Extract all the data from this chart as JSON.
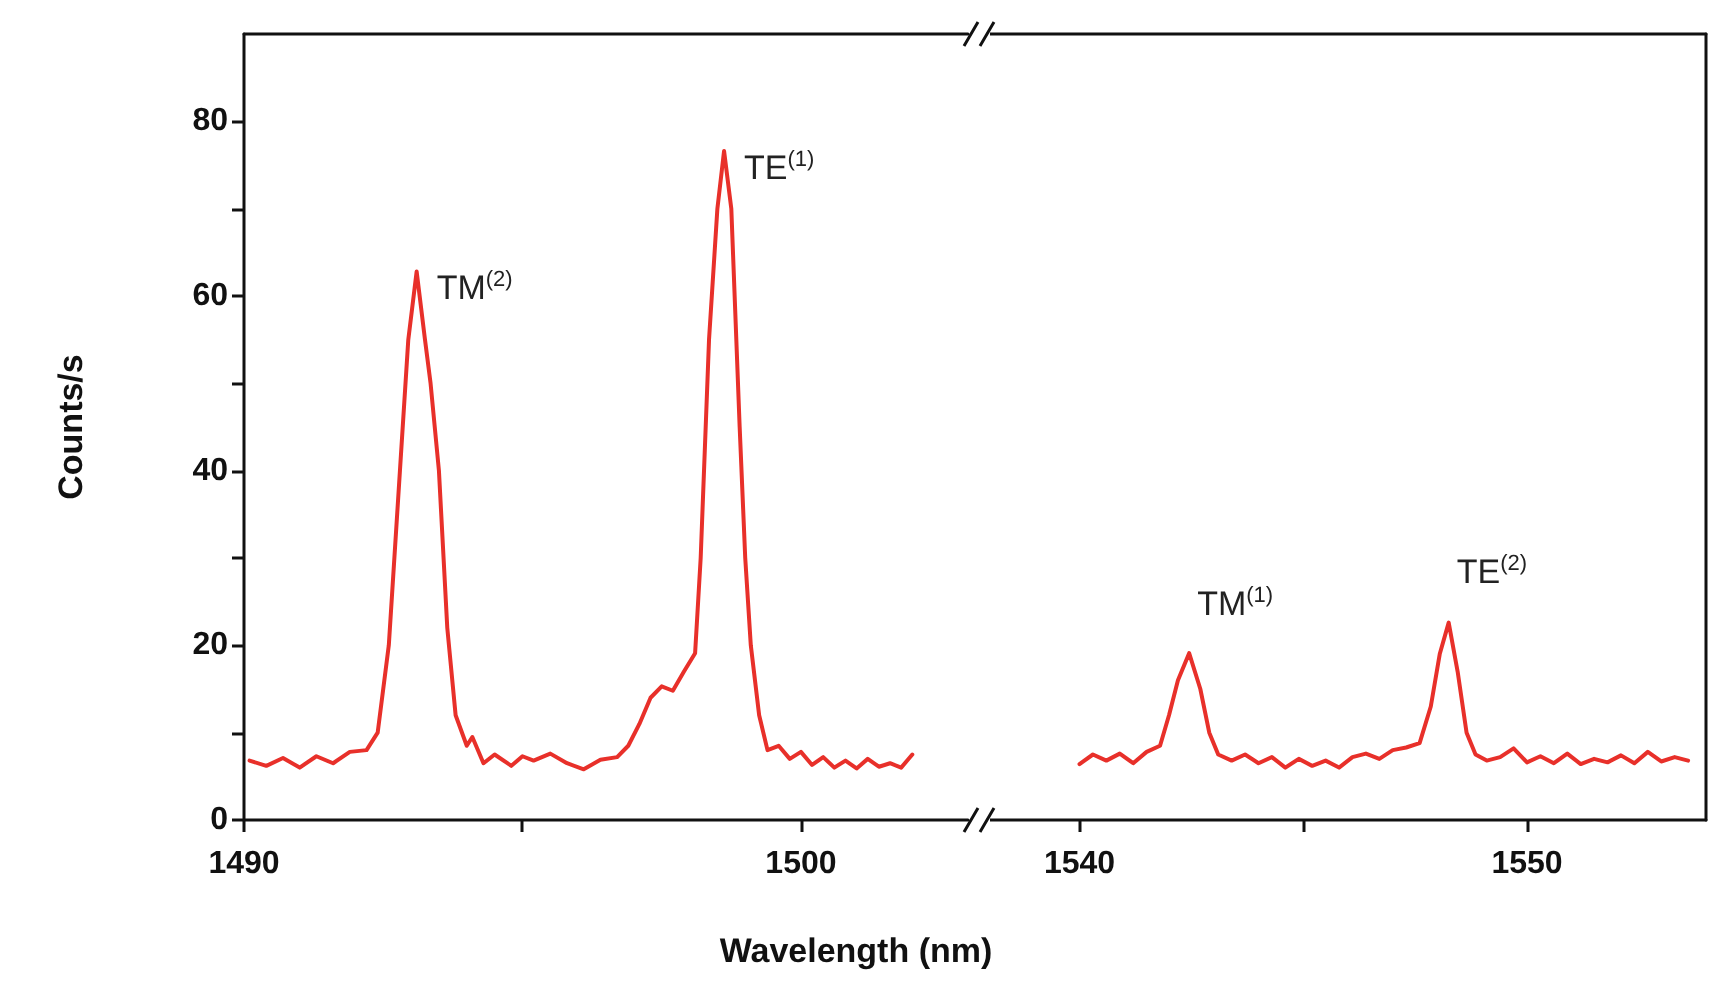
{
  "chart_data": [
    {
      "type": "line",
      "xlabel": "Wavelength (nm)",
      "ylabel": "Counts/s",
      "marker": "none",
      "line_style": "solid",
      "xlim": [
        1490,
        1503
      ],
      "xticks": [
        1490,
        {
          "value": 1495,
          "label": null
        },
        1500
      ],
      "ylim": [
        0,
        90
      ],
      "yticks": [
        0,
        {
          "value": 10,
          "label": null
        },
        20,
        {
          "value": 30,
          "label": null
        },
        40,
        {
          "value": 50,
          "label": null
        },
        60,
        {
          "value": 70,
          "label": null
        },
        80
      ],
      "annotations": [
        {
          "text": "TM$^{(2)}$",
          "x": 1493.1,
          "y": 62.8
        },
        {
          "text": "TE$^{(1)}$",
          "x": 1498.62,
          "y": 76.6
        }
      ],
      "series": [
        {
          "color": "#e8302a",
          "x": [
            1490.1,
            1490.4,
            1490.7,
            1491.0,
            1491.3,
            1491.6,
            1491.9,
            1492.2,
            1492.4,
            1492.6,
            1492.8,
            1492.95,
            1493.1,
            1493.25,
            1493.35,
            1493.5,
            1493.65,
            1493.8,
            1494.0,
            1494.1,
            1494.3,
            1494.5,
            1494.8,
            1495.0,
            1495.2,
            1495.5,
            1495.8,
            1496.1,
            1496.4,
            1496.7,
            1496.9,
            1497.1,
            1497.3,
            1497.5,
            1497.7,
            1497.9,
            1498.1,
            1498.2,
            1498.35,
            1498.5,
            1498.62,
            1498.75,
            1498.9,
            1499.0,
            1499.1,
            1499.25,
            1499.4,
            1499.6,
            1499.8,
            1500.0,
            1500.2,
            1500.4,
            1500.6,
            1500.8,
            1501.0,
            1501.2,
            1501.4,
            1501.6,
            1501.8,
            1502.0
          ],
          "values": [
            6.8,
            6.2,
            7.1,
            6.0,
            7.3,
            6.5,
            7.8,
            8.0,
            10,
            20,
            40,
            55,
            62.8,
            55,
            50,
            40,
            22,
            12,
            8.5,
            9.5,
            6.5,
            7.5,
            6.2,
            7.3,
            6.8,
            7.6,
            6.5,
            5.8,
            6.9,
            7.2,
            8.5,
            11,
            14,
            15.3,
            14.8,
            17,
            19.1,
            30,
            55,
            70,
            76.6,
            70,
            45,
            30,
            20,
            12,
            8,
            8.5,
            7.0,
            7.8,
            6.3,
            7.2,
            6.0,
            6.8,
            5.9,
            7.0,
            6.1,
            6.5,
            6.0,
            7.5
          ]
        }
      ]
    },
    {
      "type": "line",
      "marker": "none",
      "line_style": "solid",
      "tick_labels": "x",
      "xlim": [
        1538,
        1554
      ],
      "xticks": [
        1540,
        {
          "value": 1545,
          "label": null
        },
        1550
      ],
      "ylim": [
        0,
        90
      ],
      "yticks": [
        0,
        20,
        40,
        60,
        80
      ],
      "annotations": [
        {
          "text": "TM$^{(1)}$",
          "x": 1542.45,
          "y": 19.1
        },
        {
          "text": "TE$^{(2)}$",
          "x": 1548.25,
          "y": 22.6
        }
      ],
      "series": [
        {
          "color": "#e8302a",
          "x": [
            1540.0,
            1540.3,
            1540.6,
            1540.9,
            1541.2,
            1541.5,
            1541.8,
            1542.0,
            1542.2,
            1542.45,
            1542.7,
            1542.9,
            1543.1,
            1543.4,
            1543.7,
            1544.0,
            1544.3,
            1544.6,
            1544.9,
            1545.2,
            1545.5,
            1545.8,
            1546.1,
            1546.4,
            1546.7,
            1547.0,
            1547.3,
            1547.6,
            1547.85,
            1548.05,
            1548.25,
            1548.45,
            1548.65,
            1548.85,
            1549.1,
            1549.4,
            1549.7,
            1550.0,
            1550.3,
            1550.6,
            1550.9,
            1551.2,
            1551.5,
            1551.8,
            1552.1,
            1552.4,
            1552.7,
            1553.0,
            1553.3,
            1553.6
          ],
          "values": [
            6.4,
            7.5,
            6.8,
            7.6,
            6.5,
            7.8,
            8.5,
            12,
            16,
            19.1,
            15,
            10,
            7.5,
            6.8,
            7.5,
            6.5,
            7.2,
            6.0,
            7.0,
            6.2,
            6.8,
            6.0,
            7.2,
            7.6,
            7.0,
            8.0,
            8.3,
            8.8,
            13,
            19,
            22.6,
            17,
            10,
            7.5,
            6.8,
            7.2,
            8.2,
            6.6,
            7.3,
            6.5,
            7.6,
            6.4,
            7.0,
            6.6,
            7.4,
            6.5,
            7.8,
            6.7,
            7.2,
            6.8
          ]
        }
      ]
    }
  ]
}
